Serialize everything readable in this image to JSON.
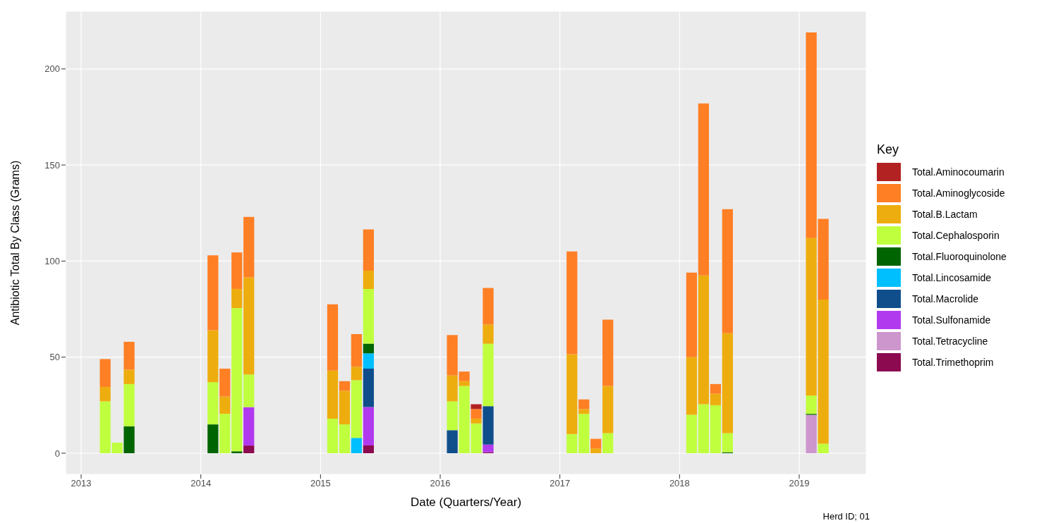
{
  "chart_data": {
    "type": "bar",
    "stacked": true,
    "xlabel": "Date (Quarters/Year)",
    "ylabel": "Antibiotic Total By Class (Grams)",
    "legend_title": "Key",
    "legend": "right",
    "grid": true,
    "annotations": [
      "Herd ID; 01"
    ],
    "x": [
      2013.2,
      2013.3,
      2013.4,
      2014.1,
      2014.2,
      2014.3,
      2014.4,
      2015.1,
      2015.2,
      2015.3,
      2015.4,
      2016.1,
      2016.2,
      2016.3,
      2016.4,
      2017.1,
      2017.2,
      2017.3,
      2017.4,
      2018.1,
      2018.2,
      2018.3,
      2018.4,
      2019.1,
      2019.2
    ],
    "xlim": [
      2012.87,
      2019.56
    ],
    "xticks": [
      2013,
      2014,
      2015,
      2016,
      2017,
      2018,
      2019
    ],
    "ylim": [
      -11,
      230
    ],
    "yticks": [
      0,
      50,
      100,
      150,
      200
    ],
    "series": [
      {
        "name": "Total.Trimethoprim",
        "color": "#8b0a50",
        "values": [
          null,
          null,
          null,
          null,
          null,
          null,
          4,
          null,
          null,
          null,
          4,
          null,
          null,
          null,
          0.5,
          null,
          null,
          null,
          null,
          null,
          null,
          null,
          null,
          null,
          null
        ]
      },
      {
        "name": "Total.Tetracycline",
        "color": "#cd96cd",
        "values": [
          null,
          null,
          null,
          null,
          null,
          null,
          null,
          null,
          null,
          null,
          null,
          null,
          null,
          null,
          null,
          null,
          null,
          null,
          null,
          null,
          null,
          null,
          null,
          20,
          null
        ]
      },
      {
        "name": "Total.Sulfonamide",
        "color": "#b23aee",
        "values": [
          null,
          null,
          null,
          null,
          null,
          null,
          20,
          null,
          null,
          null,
          20,
          null,
          null,
          null,
          4,
          null,
          null,
          null,
          null,
          null,
          null,
          null,
          null,
          null,
          null
        ]
      },
      {
        "name": "Total.Macrolide",
        "color": "#104e8b",
        "values": [
          null,
          null,
          null,
          null,
          null,
          null,
          null,
          null,
          null,
          null,
          20,
          12,
          null,
          null,
          20,
          null,
          null,
          null,
          null,
          null,
          null,
          null,
          null,
          null,
          null
        ]
      },
      {
        "name": "Total.Lincosamide",
        "color": "#00bfff",
        "values": [
          null,
          null,
          null,
          null,
          null,
          null,
          null,
          null,
          null,
          8,
          8,
          null,
          null,
          null,
          null,
          null,
          null,
          null,
          null,
          null,
          null,
          null,
          null,
          null,
          null
        ]
      },
      {
        "name": "Total.Fluoroquinolone",
        "color": "#006400",
        "values": [
          null,
          null,
          14,
          15,
          null,
          1,
          null,
          null,
          null,
          null,
          5,
          null,
          null,
          null,
          null,
          null,
          null,
          null,
          null,
          null,
          null,
          null,
          0.5,
          0.5,
          null
        ]
      },
      {
        "name": "Total.Cephalosporin",
        "color": "#c0ff3e",
        "values": [
          27,
          5.5,
          22,
          22,
          20.5,
          74.5,
          17,
          18,
          15,
          30,
          28.5,
          15,
          35,
          15.5,
          32.5,
          10,
          20.5,
          null,
          10.5,
          20,
          25.5,
          25,
          10,
          9.5,
          5
        ]
      },
      {
        "name": "Total.B.Lactam",
        "color": "#eead0e",
        "values": [
          7.5,
          null,
          7.5,
          27,
          9,
          10,
          50.5,
          25,
          17.5,
          7,
          9.5,
          13.5,
          2.5,
          2.5,
          10,
          41.5,
          2.5,
          2.5,
          24.5,
          30,
          67,
          6,
          52,
          82,
          75
        ]
      },
      {
        "name": "Total.Aminoglycoside",
        "color": "#ff7f24",
        "values": [
          14.5,
          null,
          14.5,
          39,
          14.5,
          19,
          31.5,
          34.5,
          5,
          17,
          21.5,
          21,
          5,
          5,
          19,
          53.5,
          5,
          5,
          34.5,
          44,
          89.5,
          5,
          64.5,
          107,
          42
        ]
      },
      {
        "name": "Total.Aminocoumarin",
        "color": "#b22222",
        "values": [
          null,
          null,
          null,
          null,
          null,
          null,
          null,
          null,
          null,
          null,
          null,
          null,
          null,
          2.5,
          null,
          null,
          null,
          null,
          null,
          null,
          null,
          null,
          null,
          null,
          null
        ]
      }
    ]
  }
}
